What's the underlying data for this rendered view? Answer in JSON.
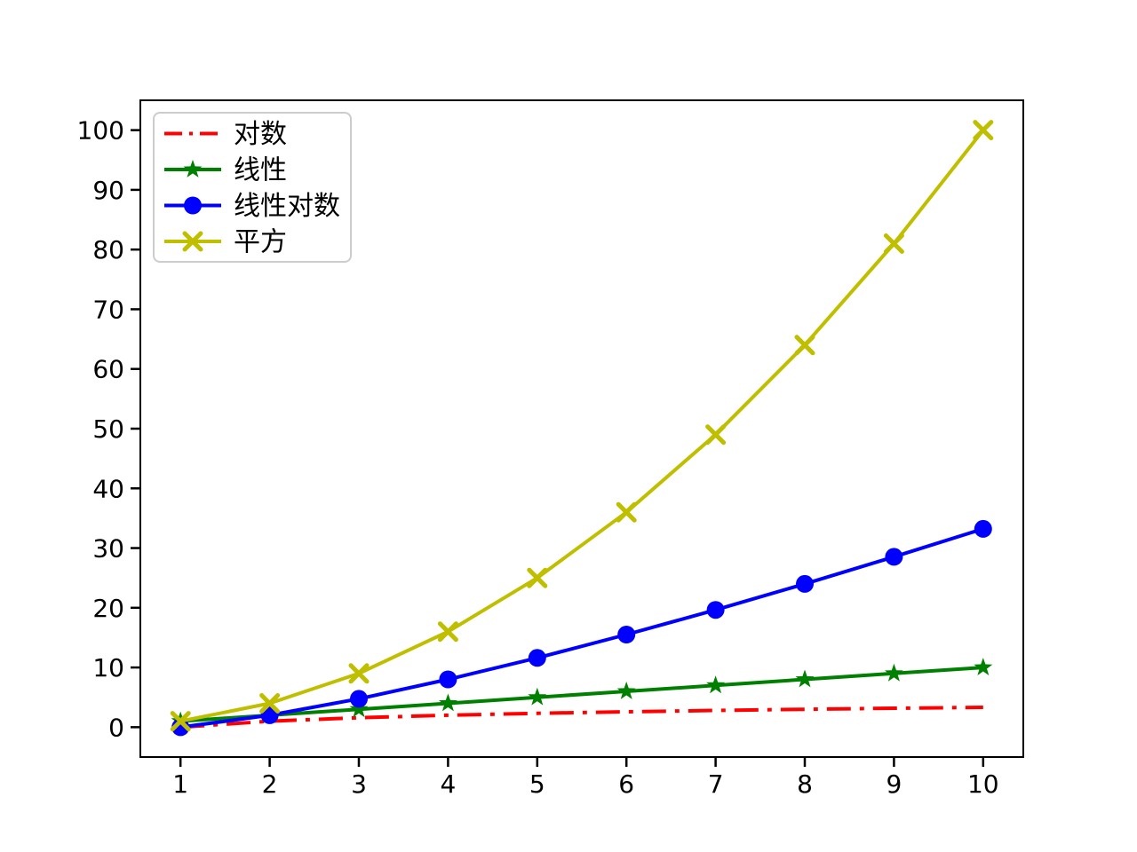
{
  "chart_data": {
    "type": "line",
    "title": "",
    "xlabel": "",
    "ylabel": "",
    "x": [
      1,
      2,
      3,
      4,
      5,
      6,
      7,
      8,
      9,
      10
    ],
    "xticks": [
      "1",
      "2",
      "3",
      "4",
      "5",
      "6",
      "7",
      "8",
      "9",
      "10"
    ],
    "yticks": [
      "0",
      "10",
      "20",
      "30",
      "40",
      "50",
      "60",
      "70",
      "80",
      "90",
      "100"
    ],
    "xlim": [
      0.55,
      10.45
    ],
    "ylim": [
      -5,
      105
    ],
    "grid": false,
    "background": "#ffffff",
    "axis_color": "#000000",
    "legend": {
      "position": "upper-left",
      "border_color": "#cccccc",
      "background": "#ffffff"
    },
    "series": [
      {
        "name": "对数",
        "color": "#ff0000",
        "linestyle": "dashdot",
        "marker": "none",
        "values": [
          0,
          1,
          1.585,
          2,
          2.322,
          2.585,
          2.807,
          3,
          3.17,
          3.322
        ]
      },
      {
        "name": "线性",
        "color": "#008000",
        "linestyle": "solid",
        "marker": "star",
        "values": [
          1,
          2,
          3,
          4,
          5,
          6,
          7,
          8,
          9,
          10
        ]
      },
      {
        "name": "线性对数",
        "color": "#0000ff",
        "linestyle": "solid",
        "marker": "circle",
        "values": [
          0,
          2,
          4.755,
          8,
          11.61,
          15.51,
          19.651,
          24,
          28.529,
          33.219
        ]
      },
      {
        "name": "平方",
        "color": "#bfbf00",
        "linestyle": "solid",
        "marker": "x",
        "values": [
          1,
          4,
          9,
          16,
          25,
          36,
          49,
          64,
          81,
          100
        ]
      }
    ]
  }
}
